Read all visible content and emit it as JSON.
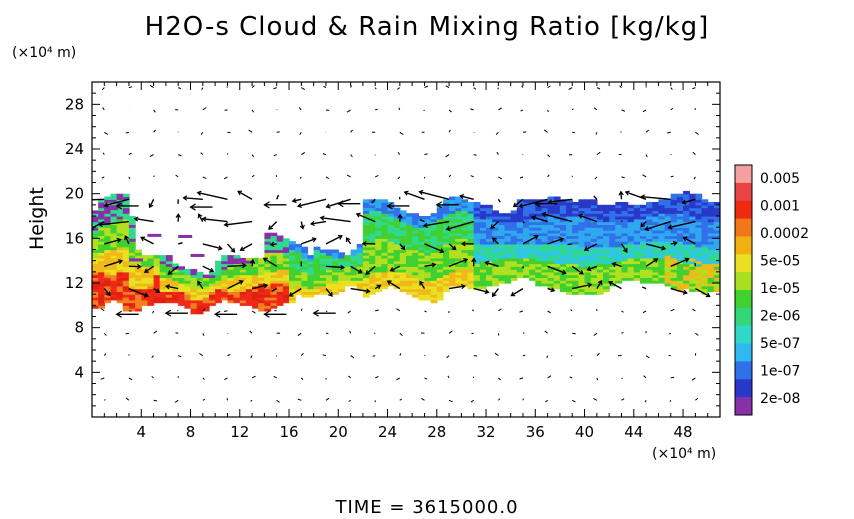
{
  "chart_data": {
    "type": "heatmap",
    "title": "H2O-s Cloud & Rain Mixing Ratio [kg/kg]",
    "xlabel": "",
    "ylabel": "Height",
    "x_unit": "(×10⁴ m)",
    "y_unit": "(×10⁴ m)",
    "xlim": [
      0,
      51
    ],
    "ylim": [
      0,
      30
    ],
    "x_ticks": [
      4,
      8,
      12,
      16,
      20,
      24,
      28,
      32,
      36,
      40,
      44,
      48
    ],
    "y_ticks": [
      4,
      8,
      12,
      16,
      20,
      24,
      28
    ],
    "colorbar": {
      "labels": [
        "0.005",
        "0.001",
        "0.0002",
        "5e-05",
        "1e-05",
        "2e-06",
        "5e-07",
        "1e-07",
        "2e-08"
      ],
      "colors": [
        "#f4a0a0",
        "#e84444",
        "#ee2a10",
        "#f07818",
        "#f2b010",
        "#e8e020",
        "#a8e020",
        "#40d030",
        "#30d878",
        "#30d8c8",
        "#30b8f0",
        "#3070e8",
        "#2838c8",
        "#8830a8"
      ]
    },
    "cloud_layer": {
      "base_height": 10,
      "top_height": 19.5,
      "west_band": {
        "x_start": 0,
        "x_end": 22,
        "bottom": 9.8,
        "top": 16.5,
        "core": "high"
      },
      "mid_band": {
        "x_start": 22,
        "x_end": 31,
        "bottom": 11,
        "top": 19.5,
        "core": "medium"
      },
      "east_band": {
        "x_start": 31,
        "x_end": 51,
        "bottom": 11.5,
        "top": 19.5,
        "core": "low"
      }
    },
    "wind_vectors": "shown",
    "time": {
      "label": "TIME",
      "value": "3615000.0"
    }
  },
  "colors": {
    "frame": "#000000",
    "background": "#ffffff"
  }
}
